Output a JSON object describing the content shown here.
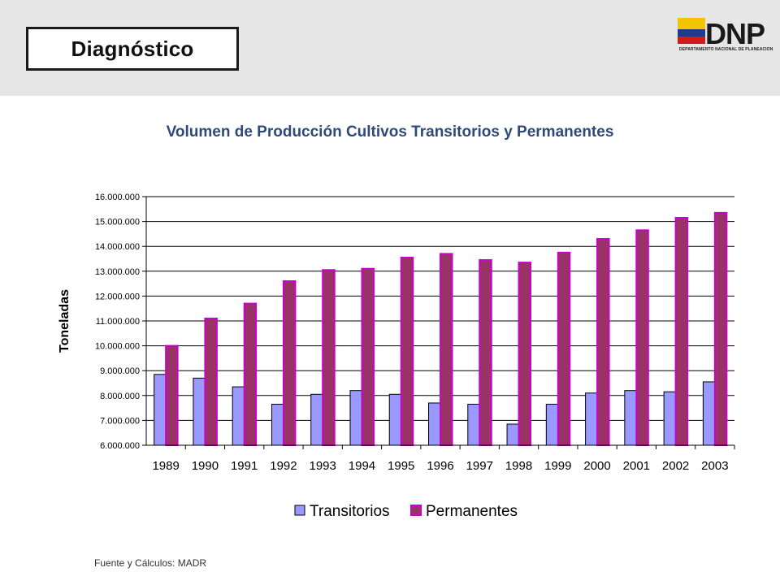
{
  "header": {
    "title": "Diagnóstico",
    "logo_text": "DNP",
    "logo_caption": "DEPARTAMENTO NACIONAL DE PLANEACIÓN"
  },
  "footer": {
    "source": "Fuente y Cálculos: MADR"
  },
  "colors": {
    "header_band": "#e6e6e6",
    "transitorios": "#9999ff",
    "permanentes": "#993366",
    "permanentes_edge": "#cc00cc",
    "title": "#2e4a7a"
  },
  "chart_data": {
    "type": "bar",
    "title": "Volumen de Producción Cultivos Transitorios y Permanentes",
    "xlabel": "",
    "ylabel": "Toneladas",
    "ylim": [
      6000000,
      16000000
    ],
    "yticks": [
      6000000,
      7000000,
      8000000,
      9000000,
      10000000,
      11000000,
      12000000,
      13000000,
      14000000,
      15000000,
      16000000
    ],
    "ytick_labels": [
      "6.000.000",
      "7.000.000",
      "8.000.000",
      "9.000.000",
      "10.000.000",
      "11.000.000",
      "12.000.000",
      "13.000.000",
      "14.000.000",
      "15.000.000",
      "16.000.000"
    ],
    "grid": true,
    "legend_position": "bottom",
    "categories": [
      "1989",
      "1990",
      "1991",
      "1992",
      "1993",
      "1994",
      "1995",
      "1996",
      "1997",
      "1998",
      "1999",
      "2000",
      "2001",
      "2002",
      "2003"
    ],
    "series": [
      {
        "name": "Transitorios",
        "values": [
          8850000,
          8700000,
          8350000,
          7650000,
          8050000,
          8200000,
          8050000,
          7700000,
          7650000,
          6850000,
          7650000,
          8100000,
          8200000,
          8150000,
          8550000
        ]
      },
      {
        "name": "Permanentes",
        "values": [
          10000000,
          11100000,
          11700000,
          12600000,
          13050000,
          13100000,
          13550000,
          13700000,
          13450000,
          13350000,
          13750000,
          14300000,
          14650000,
          15150000,
          15350000
        ]
      }
    ]
  }
}
